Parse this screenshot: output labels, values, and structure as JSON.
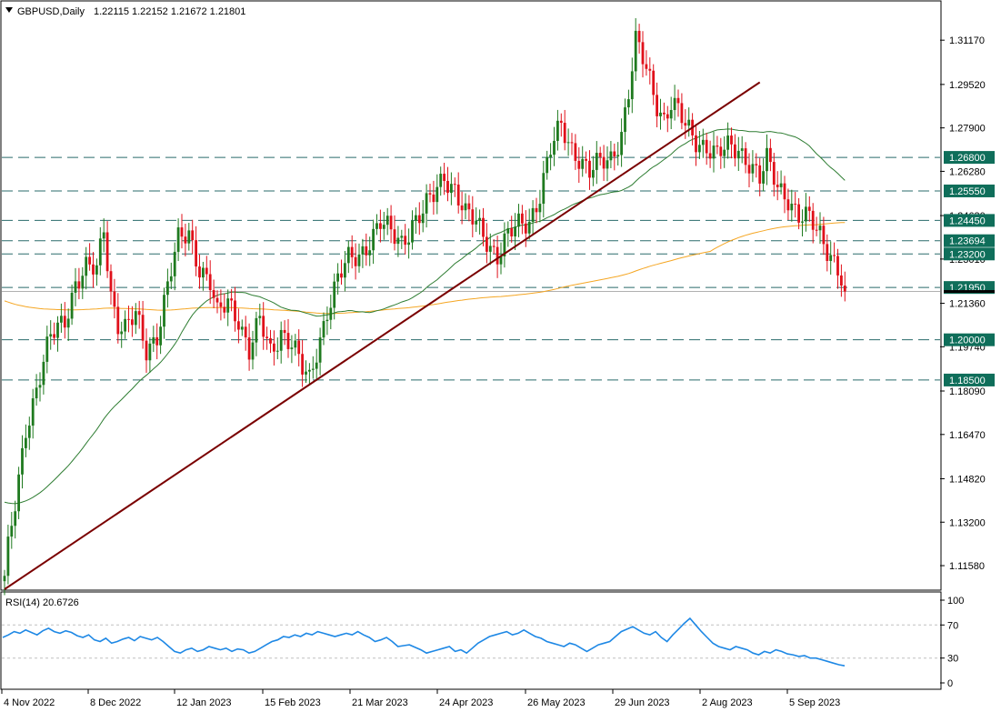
{
  "header": {
    "symbol": "GBPUSD,Daily",
    "ohlc": "1.22115 1.22152 1.21672 1.21801"
  },
  "colors": {
    "bull": "#1f7a1f",
    "bear": "#e0101a",
    "sma50": "#2e7d32",
    "sma200": "#f5a623",
    "trendline": "#7a0000",
    "level_line": "#2a6b6b",
    "level_box": "#0f6e5a",
    "rsi_line": "#1e88e5"
  },
  "chart_data": [
    {
      "type": "candlestick",
      "title": "GBPUSD,Daily",
      "ylim": [
        1.107,
        1.326
      ],
      "price_axis_ticks": [
        "1.31170",
        "1.29520",
        "1.27900",
        "1.26280",
        "1.24630",
        "1.23010",
        "1.21360",
        "1.19740",
        "1.18090",
        "1.16470",
        "1.14820",
        "1.13200",
        "1.11580"
      ],
      "date_labels": [
        "4 Nov 2022",
        "8 Dec 2022",
        "12 Jan 2023",
        "15 Feb 2023",
        "21 Mar 2023",
        "24 Apr 2023",
        "26 May 2023",
        "29 Jun 2023",
        "2 Aug 2023",
        "5 Sep 2023"
      ],
      "levels": [
        {
          "value": 1.268,
          "label": "1.26800"
        },
        {
          "value": 1.2555,
          "label": "1.25550"
        },
        {
          "value": 1.2445,
          "label": "1.24450"
        },
        {
          "value": 1.23694,
          "label": "1.23694"
        },
        {
          "value": 1.232,
          "label": "1.23200"
        },
        {
          "value": 1.2195,
          "label": "1.21950"
        },
        {
          "value": 1.2,
          "label": "1.20000"
        },
        {
          "value": 1.185,
          "label": "1.18500"
        }
      ],
      "current_price": {
        "value": 1.21801,
        "label": "1.21801"
      },
      "trendline": {
        "from": [
          0,
          1.107
        ],
        "to": [
          213,
          1.296
        ]
      },
      "close_anchors": [
        [
          0,
          1.112
        ],
        [
          3,
          1.138
        ],
        [
          6,
          1.168
        ],
        [
          9,
          1.182
        ],
        [
          13,
          1.2
        ],
        [
          17,
          1.208
        ],
        [
          20,
          1.222
        ],
        [
          23,
          1.226
        ],
        [
          26,
          1.225
        ],
        [
          28,
          1.242
        ],
        [
          30,
          1.218
        ],
        [
          32,
          1.207
        ],
        [
          34,
          1.204
        ],
        [
          37,
          1.208
        ],
        [
          40,
          1.196
        ],
        [
          43,
          1.203
        ],
        [
          46,
          1.22
        ],
        [
          49,
          1.236
        ],
        [
          52,
          1.24
        ],
        [
          55,
          1.228
        ],
        [
          58,
          1.221
        ],
        [
          60,
          1.208
        ],
        [
          63,
          1.214
        ],
        [
          66,
          1.209
        ],
        [
          69,
          1.196
        ],
        [
          72,
          1.206
        ],
        [
          75,
          1.195
        ],
        [
          78,
          1.204
        ],
        [
          81,
          1.199
        ],
        [
          84,
          1.188
        ],
        [
          86,
          1.184
        ],
        [
          88,
          1.196
        ],
        [
          91,
          1.212
        ],
        [
          94,
          1.222
        ],
        [
          97,
          1.229
        ],
        [
          100,
          1.232
        ],
        [
          103,
          1.238
        ],
        [
          106,
          1.243
        ],
        [
          109,
          1.239
        ],
        [
          112,
          1.237
        ],
        [
          115,
          1.244
        ],
        [
          118,
          1.247
        ],
        [
          121,
          1.253
        ],
        [
          124,
          1.262
        ],
        [
          127,
          1.257
        ],
        [
          130,
          1.246
        ],
        [
          133,
          1.243
        ],
        [
          136,
          1.238
        ],
        [
          139,
          1.232
        ],
        [
          142,
          1.238
        ],
        [
          145,
          1.242
        ],
        [
          148,
          1.245
        ],
        [
          151,
          1.255
        ],
        [
          154,
          1.27
        ],
        [
          157,
          1.279
        ],
        [
          160,
          1.272
        ],
        [
          162,
          1.269
        ],
        [
          165,
          1.262
        ],
        [
          168,
          1.265
        ],
        [
          171,
          1.268
        ],
        [
          174,
          1.278
        ],
        [
          176,
          1.292
        ],
        [
          178,
          1.31
        ],
        [
          180,
          1.304
        ],
        [
          182,
          1.297
        ],
        [
          184,
          1.289
        ],
        [
          186,
          1.283
        ],
        [
          188,
          1.288
        ],
        [
          190,
          1.284
        ],
        [
          192,
          1.279
        ],
        [
          195,
          1.275
        ],
        [
          198,
          1.273
        ],
        [
          201,
          1.268
        ],
        [
          204,
          1.271
        ],
        [
          207,
          1.272
        ],
        [
          210,
          1.267
        ],
        [
          213,
          1.259
        ],
        [
          215,
          1.266
        ],
        [
          218,
          1.258
        ],
        [
          221,
          1.254
        ],
        [
          224,
          1.245
        ],
        [
          227,
          1.244
        ],
        [
          230,
          1.24
        ],
        [
          233,
          1.233
        ],
        [
          235,
          1.226
        ],
        [
          237,
          1.218
        ]
      ],
      "series": [
        {
          "name": "",
          "type": "sma-50"
        },
        {
          "name": "",
          "type": "sma-200"
        }
      ]
    },
    {
      "type": "line",
      "title": "RSI(14) 20.6726",
      "ylim": [
        0,
        100
      ],
      "y_ticks": [
        "100",
        "70",
        "30",
        "0"
      ],
      "levels": [
        70,
        30
      ],
      "values": [
        55,
        58,
        62,
        60,
        64,
        61,
        58,
        63,
        66,
        62,
        60,
        63,
        61,
        57,
        55,
        58,
        52,
        50,
        54,
        48,
        50,
        53,
        55,
        51,
        56,
        54,
        52,
        55,
        50,
        44,
        38,
        36,
        40,
        42,
        38,
        40,
        44,
        42,
        40,
        42,
        38,
        41,
        40,
        36,
        38,
        42,
        46,
        50,
        52,
        56,
        55,
        58,
        56,
        60,
        58,
        62,
        60,
        58,
        56,
        58,
        60,
        58,
        62,
        58,
        55,
        50,
        52,
        55,
        50,
        44,
        45,
        46,
        43,
        40,
        36,
        38,
        40,
        42,
        44,
        38,
        40,
        36,
        42,
        48,
        52,
        56,
        58,
        60,
        62,
        58,
        60,
        64,
        60,
        56,
        54,
        50,
        48,
        46,
        44,
        48,
        46,
        42,
        38,
        42,
        46,
        48,
        50,
        56,
        62,
        65,
        68,
        64,
        60,
        58,
        62,
        55,
        50,
        58,
        65,
        72,
        78,
        70,
        62,
        55,
        48,
        44,
        42,
        40,
        44,
        42,
        40,
        36,
        34,
        38,
        36,
        40,
        38,
        35,
        34,
        32,
        33,
        30,
        30,
        28,
        26,
        24,
        22,
        20.6726
      ]
    }
  ]
}
